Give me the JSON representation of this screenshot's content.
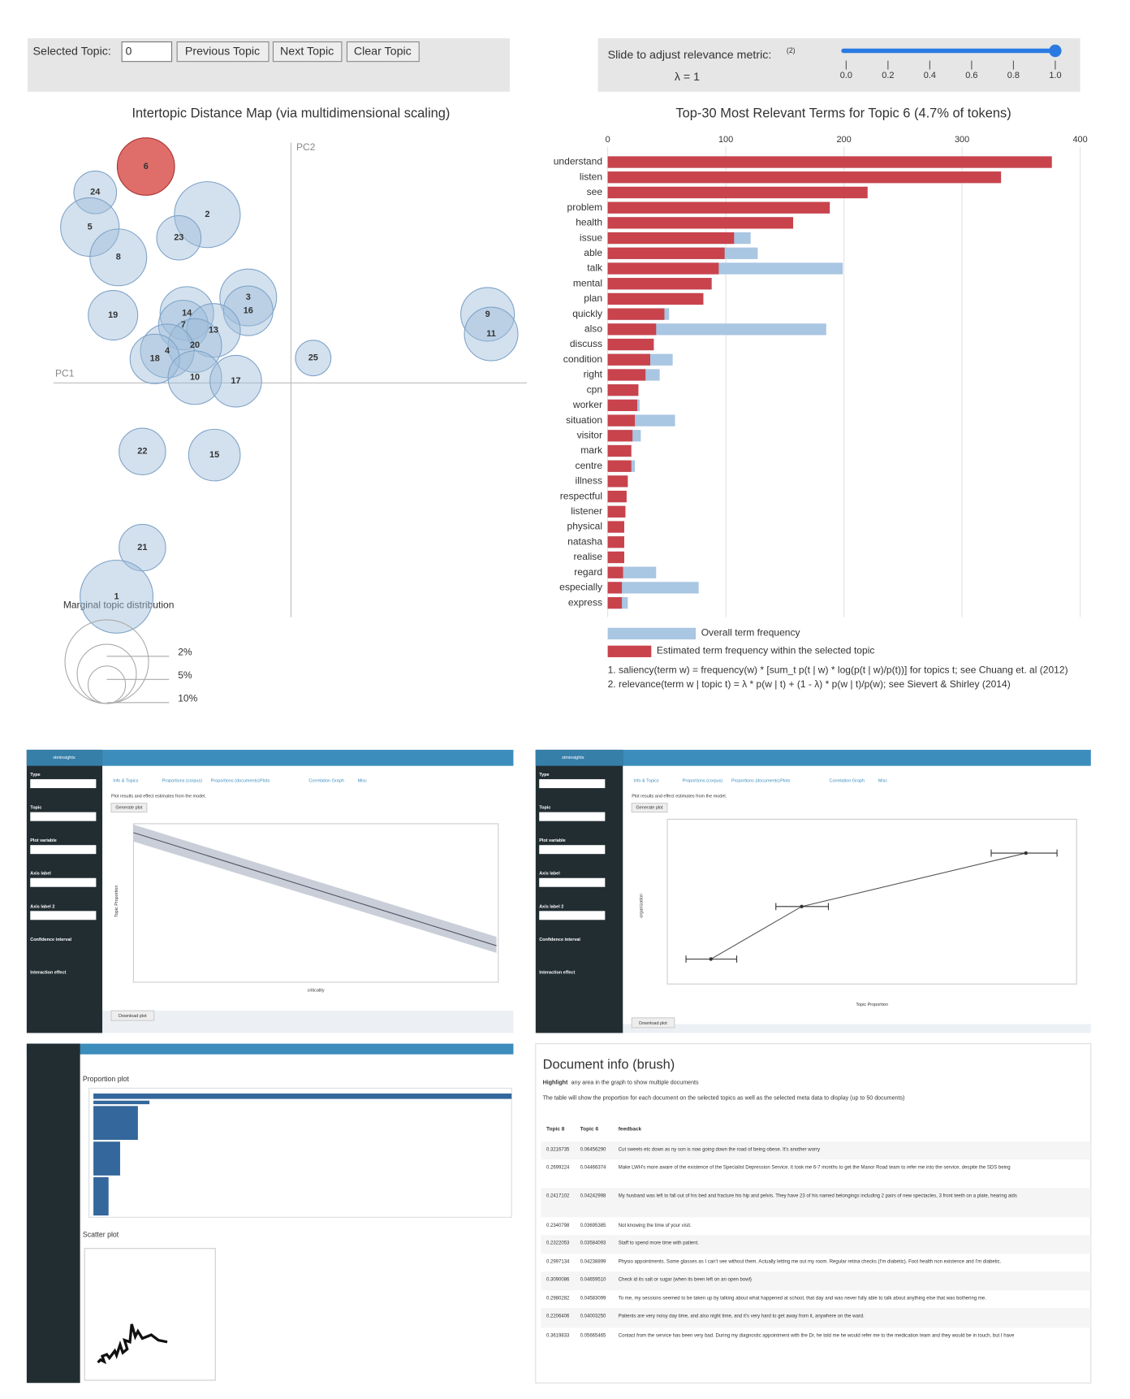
{
  "ldavis": {
    "controls": {
      "selected_topic_label": "Selected Topic:",
      "selected_topic_value": "0",
      "previous": "Previous Topic",
      "next": "Next Topic",
      "clear": "Clear Topic",
      "slider_label": "Slide to adjust relevance metric:",
      "slider_note": "(2)",
      "lambda_label": "λ = 1",
      "lambda": 1,
      "slider_ticks": [
        {
          "value": 0,
          "label": "0.0"
        },
        0.2,
        0.4,
        0.6,
        0.8,
        {
          "value": 1,
          "label": "1.0"
        }
      ]
    },
    "distance_map": {
      "title": "Intertopic Distance Map (via multidimensional scaling)",
      "x_label": "PC1",
      "y_label": "PC2",
      "xlim": [
        -2.67,
        2.65
      ],
      "ylim": [
        -2.63,
        2.7
      ],
      "circle_color": "#9ebcda",
      "selected_color": "#d9534f",
      "topics": [
        {
          "label": "6",
          "x": -1.63,
          "y": 2.43,
          "size": 4.7,
          "selected": true
        },
        {
          "label": "24",
          "x": -2.2,
          "y": 2.14,
          "size": 2.6
        },
        {
          "label": "2",
          "x": -0.94,
          "y": 1.89,
          "size": 6.2
        },
        {
          "label": "5",
          "x": -2.26,
          "y": 1.75,
          "size": 4.9
        },
        {
          "label": "23",
          "x": -1.26,
          "y": 1.63,
          "size": 2.8
        },
        {
          "label": "8",
          "x": -1.94,
          "y": 1.41,
          "size": 4.6
        },
        {
          "label": "19",
          "x": -2.0,
          "y": 0.76,
          "size": 3.5
        },
        {
          "label": "3",
          "x": -0.48,
          "y": 0.96,
          "size": 4.6
        },
        {
          "label": "16",
          "x": -0.48,
          "y": 0.81,
          "size": 3.5
        },
        {
          "label": "14",
          "x": -1.17,
          "y": 0.78,
          "size": 4.1
        },
        {
          "label": "7",
          "x": -1.21,
          "y": 0.65,
          "size": 3.5
        },
        {
          "label": "13",
          "x": -0.87,
          "y": 0.59,
          "size": 4.1
        },
        {
          "label": "20",
          "x": -1.08,
          "y": 0.42,
          "size": 4.1
        },
        {
          "label": "4",
          "x": -1.39,
          "y": 0.36,
          "size": 4.1
        },
        {
          "label": "18",
          "x": -1.53,
          "y": 0.27,
          "size": 3.5
        },
        {
          "label": "10",
          "x": -1.08,
          "y": 0.06,
          "size": 4.1
        },
        {
          "label": "17",
          "x": -0.62,
          "y": 0.02,
          "size": 3.8
        },
        {
          "label": "25",
          "x": 0.25,
          "y": 0.28,
          "size": 1.8
        },
        {
          "label": "9",
          "x": 2.21,
          "y": 0.77,
          "size": 4.1
        },
        {
          "label": "11",
          "x": 2.25,
          "y": 0.55,
          "size": 4.1
        },
        {
          "label": "22",
          "x": -1.67,
          "y": -0.77,
          "size": 3.1
        },
        {
          "label": "15",
          "x": -0.86,
          "y": -0.81,
          "size": 3.8
        },
        {
          "label": "21",
          "x": -1.67,
          "y": -1.85,
          "size": 3.1
        },
        {
          "label": "1",
          "x": -1.96,
          "y": -2.4,
          "size": 7.6
        }
      ],
      "legend_title": "Marginal topic distribution",
      "legend": [
        {
          "value": 2,
          "label": "2%"
        },
        {
          "value": 5,
          "label": "5%"
        },
        {
          "value": 10,
          "label": "10%"
        }
      ]
    },
    "terms": {
      "title": "Top-30 Most Relevant Terms for Topic 6 (4.7% of tokens)",
      "xlim": [
        0,
        400
      ],
      "xticks": [
        0,
        100,
        200,
        300,
        400
      ],
      "topic_color": "#c9434c",
      "overall_color": "#a9c6e2",
      "categories": [
        "understand",
        "listen",
        "see",
        "problem",
        "health",
        "issue",
        "able",
        "talk",
        "mental",
        "plan",
        "quickly",
        "also",
        "discuss",
        "condition",
        "right",
        "cpn",
        "worker",
        "situation",
        "visitor",
        "mark",
        "centre",
        "illness",
        "respectful",
        "listener",
        "physical",
        "natasha",
        "realise",
        "regard",
        "especially",
        "express"
      ],
      "overall": [
        376,
        333,
        220,
        188,
        157,
        121,
        127,
        199,
        88,
        81,
        52,
        185,
        39,
        55,
        44,
        26,
        27,
        57,
        28,
        20,
        23,
        17,
        16,
        15,
        14,
        14,
        14,
        41,
        77,
        17
      ],
      "topic": [
        376,
        333,
        220,
        188,
        157,
        107,
        99,
        94,
        88,
        81,
        48,
        41,
        39,
        36,
        32,
        26,
        25,
        23,
        21,
        20,
        20,
        17,
        16,
        15,
        14,
        14,
        14,
        13,
        12,
        12
      ],
      "legend": [
        "Overall term frequency",
        "Estimated term frequency within the selected topic"
      ],
      "notes": [
        "1. saliency(term w) = frequency(w) * [sum_t p(t | w) * log(p(t | w)/p(t))] for topics t; see Chuang et. al (2012)",
        "2. relevance(term w | topic t) = λ * p(w | t) + (1 - λ) * p(w | t)/p(w); see Sievert & Shirley (2014)"
      ]
    }
  },
  "screens": {
    "brand": "stminsights",
    "tabs": [
      "Info & Topics",
      "Proportions (corpus)",
      "Proportions (documents)",
      "Plots",
      "Correlation Graph",
      "Misc"
    ],
    "sidebar": [
      "Type",
      "Topic",
      "Plot variable",
      "Axis label",
      "Axis label 2",
      "Confidence interval",
      "Interaction effect"
    ],
    "generate": "Generate plot",
    "download": "Download plot",
    "subtitle": "Plot results and effect estimates from the model.",
    "plot1": {
      "x_label": "criticality",
      "y_label": "Topic Proportion"
    },
    "plot2": {
      "x_label": "Topic Proportion",
      "y_label": "organization"
    },
    "plot3": {
      "proportion": "Proportion plot",
      "scatter": "Scatter plot"
    },
    "document_info": {
      "title": "Document info (brush)",
      "hint_bold": "Highlight",
      "hint": "any area in the graph to show multiple documents",
      "description": "The table will show the proportion for each document on the selected topics as well as the selected meta data to display (up to 50 documents)",
      "columns": [
        "Topic 8",
        "Topic 6",
        "feedback"
      ],
      "rows": [
        [
          "0.3216735",
          "0.06456290",
          "Cut sweets etc down as ny son is now going down the road of being obese. It's another worry"
        ],
        [
          "0.2699224",
          "0.04466374",
          "Make LWH's more aware of the existence of the Specialist Depression Service. It took me 6-7 months to get the Manor Road team to refer me into the service, despite the SDS being"
        ],
        [
          "0.2417102",
          "0.04242998",
          "My husband was left to fall out of his bed and fracture his hip and pelvis. They have 23 of his named belongings including 2 pairs of new spectacles, 3 front teeth on a plate, hearing aids"
        ],
        [
          "0.2340798",
          "0.03695385",
          "Not knowing the time of your visit."
        ],
        [
          "0.2322053",
          "0.03584093",
          "Staff to spend more time with patient."
        ],
        [
          "0.2997134",
          "0.04238899",
          "Physio appointments. Some glasses as I can't see without them. Actually letting me out my room. Regular retina checks (I'm diabetic). Foot health non existence and I'm diabetic."
        ],
        [
          "0.3090086",
          "0.04659510",
          "Check id its salt or sugar (when its been left on an open bowl)"
        ],
        [
          "0.2980282",
          "0.04583099",
          "To me, my sessions seemed to be taken up by talking about what happened at school, that day and was never fully able to talk about anything else that was bothering me."
        ],
        [
          "0.2206406",
          "0.04003250",
          "Patients are very noisy day time, and also night time, and it's very hard to get away from it, anywhere on the ward."
        ],
        [
          "0.3619833",
          "0.05665465",
          "Contact from the service has been very bad. During my diagnostic appointment with the Dr, he told me he would refer me to the medication team and they would be in touch, but I have"
        ]
      ]
    }
  }
}
